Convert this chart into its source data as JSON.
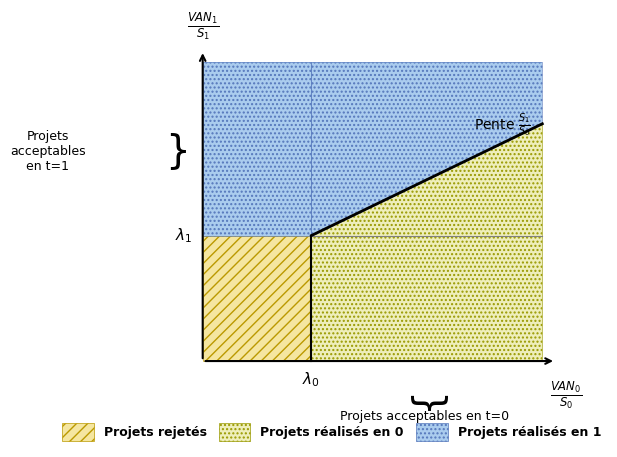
{
  "lambda0": 0.32,
  "lambda1": 0.42,
  "slope": 0.55,
  "xmax": 1.0,
  "ymax": 1.0,
  "blue_face": "#AACCEE",
  "green_face": "#EEEEBB",
  "reject_face": "#F5E6A0",
  "blue_edge": "#5577BB",
  "green_edge": "#999900",
  "reject_edge": "#BB9900",
  "line_color": "#000000",
  "axis_color": "#000000",
  "grid_color": "#999999",
  "bg_color": "#FFFFFF",
  "ylabel": "$\\frac{VAN_1}{S_1}$",
  "xlabel": "$\\frac{VAN_0}{S_0}$",
  "lambda0_label": "$\\lambda_0$",
  "lambda1_label": "$\\lambda_1$",
  "slope_label": "Pente $\\frac{S_1}{S_0}$",
  "y_proj_label": "Projets\nacceptables\nen t=1",
  "x_proj_label": "Projets acceptables en t=0",
  "leg_label1": "Projets rejetés",
  "leg_label2": "Projets réalisés en 0",
  "leg_label3": "Projets réalisés en 1"
}
